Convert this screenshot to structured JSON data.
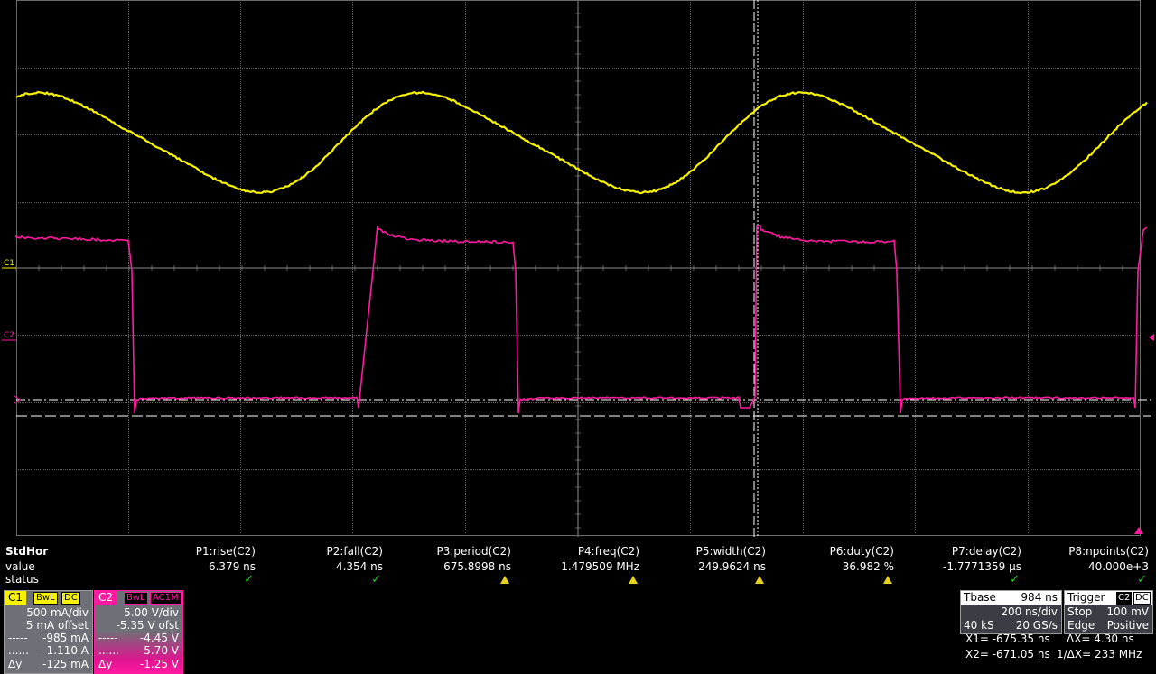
{
  "screen": {
    "ch1_label": "C1",
    "ch2_label": "C2"
  },
  "measurements": {
    "row_title": "StdHor",
    "row_value": "value",
    "row_status": "status",
    "params": [
      {
        "name": "P1:rise(C2)",
        "value": "6.379 ns",
        "status": "ok"
      },
      {
        "name": "P2:fall(C2)",
        "value": "4.354 ns",
        "status": "ok"
      },
      {
        "name": "P3:period(C2)",
        "value": "675.8998 ns",
        "status": "warn"
      },
      {
        "name": "P4:freq(C2)",
        "value": "1.479509 MHz",
        "status": "warn"
      },
      {
        "name": "P5:width(C2)",
        "value": "249.9624 ns",
        "status": "warn"
      },
      {
        "name": "P6:duty(C2)",
        "value": "36.982 %",
        "status": "warn"
      },
      {
        "name": "P7:delay(C2)",
        "value": "-1.7771359 µs",
        "status": "ok"
      },
      {
        "name": "P8:npoints(C2)",
        "value": "40.000e+3",
        "status": "ok"
      }
    ],
    "ok_glyph": "✓"
  },
  "ch1": {
    "label": "C1",
    "tag1": "BwL",
    "tag2": "DC",
    "scale": "500 mA/div",
    "offset": "5 mA offset",
    "cur1_mark": "-----",
    "cur1": "-985 mA",
    "cur2_mark": "......",
    "cur2": "-1.110 A",
    "delta_label": "Δy",
    "delta": "-125 mA",
    "color": "#f7f300"
  },
  "ch2": {
    "label": "C2",
    "tag1": "BwL",
    "tag2": "AC1M",
    "scale": "5.00 V/div",
    "offset": "-5.35 V ofst",
    "cur1_mark": "-----",
    "cur1": "-4.45 V",
    "cur2_mark": "......",
    "cur2": "-5.70 V",
    "delta_label": "Δy",
    "delta": "-1.25 V",
    "color": "#ff1aa0"
  },
  "timebase": {
    "label": "Tbase",
    "delay": "984 ns",
    "scale": "200 ns/div",
    "samples": "40 kS",
    "rate": "20 GS/s"
  },
  "trigger": {
    "label": "Trigger",
    "src": "C2",
    "coupling": "DC",
    "mode": "Stop",
    "level": "100 mV",
    "type": "Edge",
    "slope": "Positive"
  },
  "cursors": {
    "x1": "X1= -675.35 ns",
    "dx": "ΔX= 4.30 ns",
    "x2": "X2= -671.05 ns",
    "inv_dx": "1/ΔX= 233 MHz"
  }
}
